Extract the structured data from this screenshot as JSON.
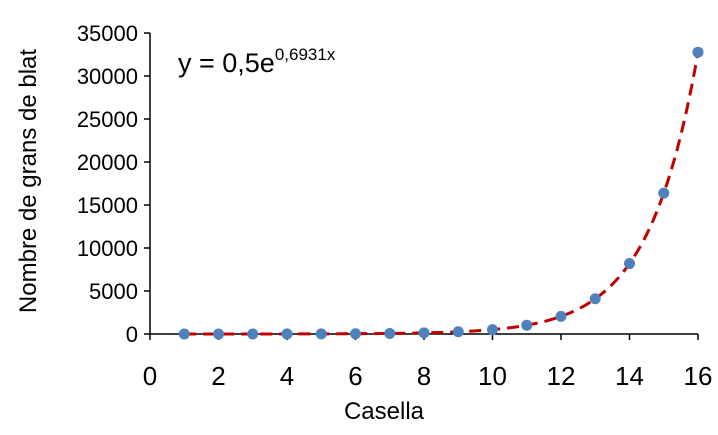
{
  "chart_data": {
    "type": "scatter",
    "title": "",
    "xlabel": "Casella",
    "ylabel": "Nombre de grans de blat",
    "xlim": [
      0,
      16
    ],
    "ylim": [
      0,
      35000
    ],
    "x_ticks": [
      0,
      2,
      4,
      6,
      8,
      10,
      12,
      14,
      16
    ],
    "y_ticks": [
      0,
      5000,
      10000,
      15000,
      20000,
      25000,
      30000,
      35000
    ],
    "grid": false,
    "legend": "none",
    "series": [
      {
        "x": [
          1,
          2,
          3,
          4,
          5,
          6,
          7,
          8,
          9,
          10,
          11,
          12,
          13,
          14,
          15,
          16
        ],
        "y": [
          1,
          2,
          4,
          8,
          16,
          32,
          64,
          128,
          256,
          512,
          1024,
          2048,
          4096,
          8192,
          16384,
          32768
        ],
        "marker_color": "#4F81BD"
      }
    ],
    "trendline": {
      "type": "exponential",
      "a": 0.5,
      "b": 0.6931,
      "color": "#C00000",
      "style": "dashed"
    },
    "annotation": {
      "prefix": "y = 0,5e",
      "exponent": "0,6931x"
    }
  }
}
